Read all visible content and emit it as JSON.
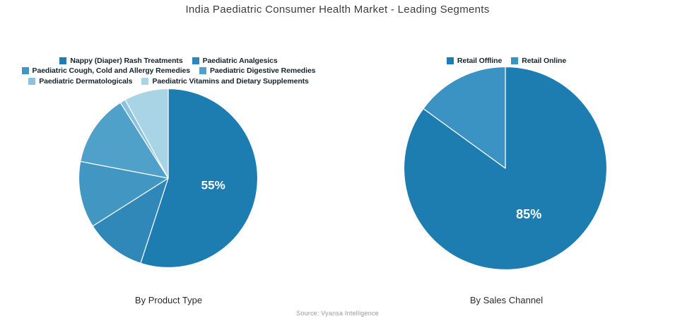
{
  "title": "India Paediatric Consumer Health Market - Leading Segments",
  "source": "Source: Vyansa Intelligence",
  "chart_data": [
    {
      "type": "pie",
      "title": "By Product Type",
      "labels": [
        "Nappy (Diaper) Rash Treatments",
        "Paediatric Analgesics",
        "Paediatric Cough, Cold and Allergy Remedies",
        "Paediatric Digestive Remedies",
        "Paediatric Dermatologicals",
        "Paediatric Vitamins and Dietary Supplements"
      ],
      "values": [
        55,
        11,
        12,
        13,
        1,
        8
      ],
      "colors": [
        "#1d7db1",
        "#2f88b8",
        "#4196c2",
        "#4fa1c9",
        "#8ac3dd",
        "#a9d4e6"
      ],
      "pct_labels": [
        "55%",
        "",
        "",
        "",
        "",
        ""
      ],
      "legend_rows": [
        [
          0,
          1
        ],
        [
          2,
          3
        ],
        [
          4,
          5
        ]
      ],
      "legend_position": "top",
      "start_angle": "12-oclock",
      "direction": "clockwise"
    },
    {
      "type": "pie",
      "title": "By Sales Channel",
      "labels": [
        "Retail Offline",
        "Retail Online"
      ],
      "values": [
        85,
        15
      ],
      "colors": [
        "#1d7db1",
        "#3a93c2"
      ],
      "pct_labels": [
        "85%",
        ""
      ],
      "legend_rows": [
        [
          0,
          1
        ]
      ],
      "legend_position": "top",
      "start_angle": "12-oclock",
      "direction": "clockwise"
    }
  ]
}
